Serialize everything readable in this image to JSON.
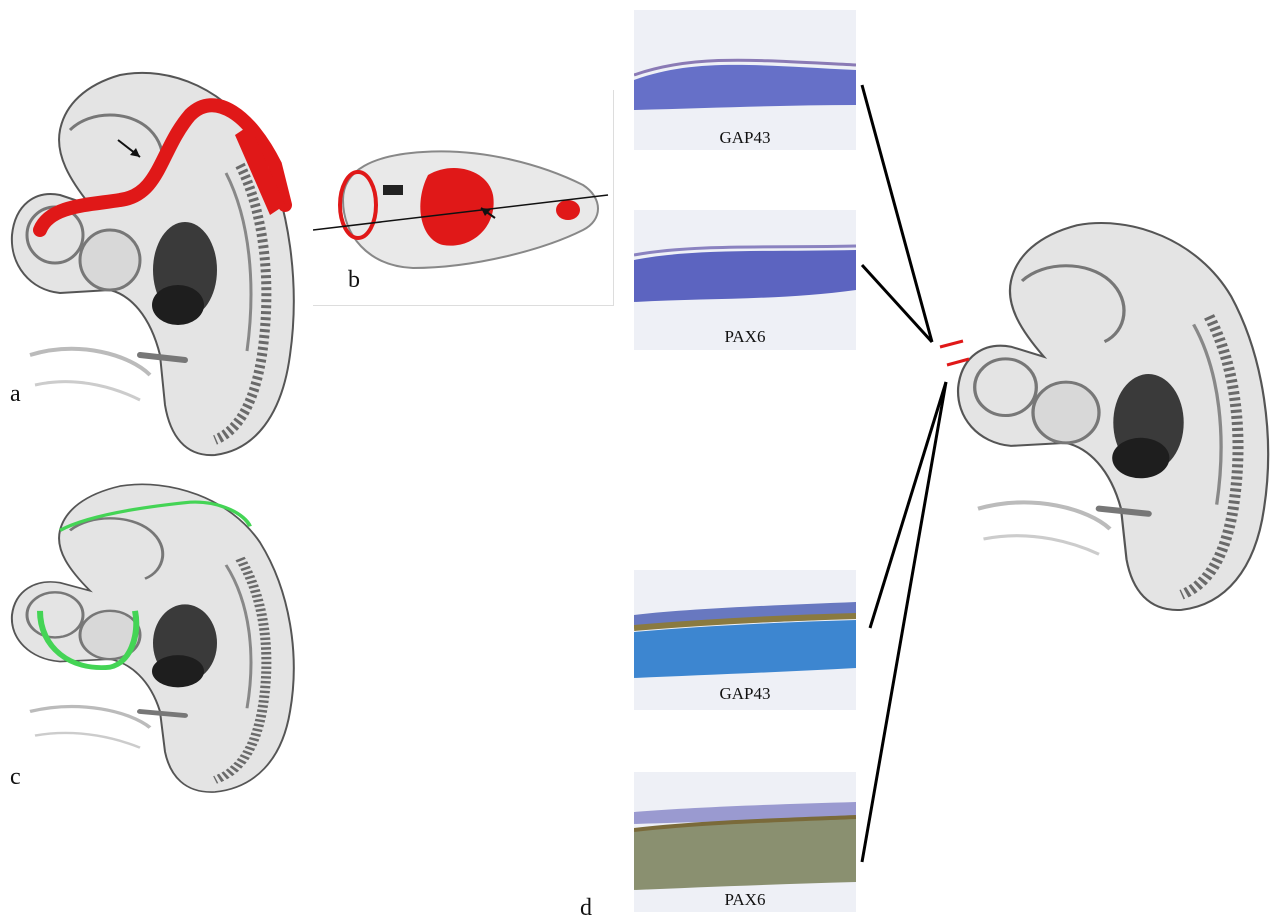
{
  "panels": {
    "a": "a",
    "b": "b",
    "c": "c",
    "d": "d"
  },
  "sections": [
    {
      "label": "GAP43",
      "stain": "blue"
    },
    {
      "label": "PAX6",
      "stain": "blue"
    },
    {
      "label": "GAP43",
      "stain": "brown"
    },
    {
      "label": "PAX6",
      "stain": "brown"
    }
  ],
  "colors": {
    "highlight_red": "#e01818",
    "highlight_green": "#44d455",
    "tissue_gray": "#9a9a9a",
    "nuclei_blue": "#5a66c0",
    "stain_brown": "#8a7a40"
  }
}
